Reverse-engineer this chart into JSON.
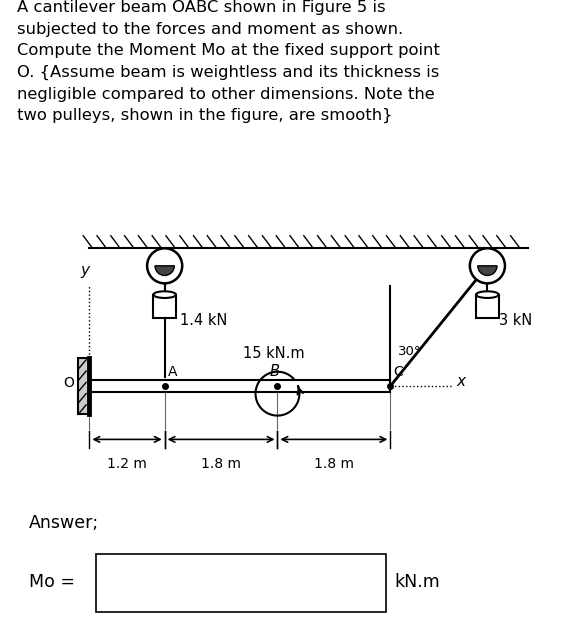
{
  "title_text": "A cantilever beam OABC shown in Figure 5 is\nsubjected to the forces and moment as shown.\nCompute the Moment Mo at the fixed support point\nO. {Assume beam is weightless and its thickness is\nnegligible compared to other dimensions. Note the\ntwo pulleys, shown in the figure, are smooth}",
  "answer_label": "Answer;",
  "mo_label": "Mo =",
  "kn_label": "kN.m",
  "force_A": "1.4 kN",
  "force_C": "3 kN",
  "moment_B": "15 kN.m",
  "angle_label": "30°",
  "dim1": "1.2 m",
  "dim2": "1.8 m",
  "dim3": "1.8 m",
  "bg_color": "#ffffff",
  "text_color": "#000000",
  "title_fontsize": 11.8,
  "label_fontsize": 10.5,
  "dim_fontsize": 10.0
}
